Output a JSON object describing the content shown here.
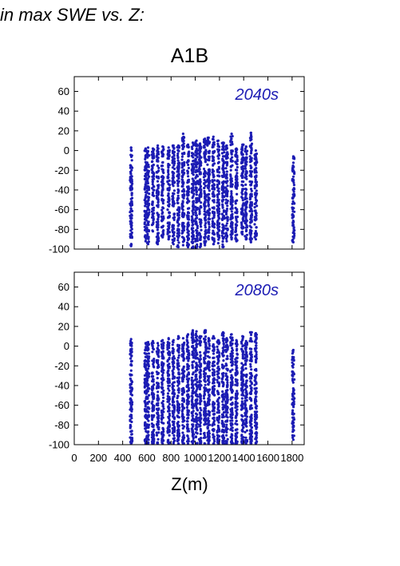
{
  "header": {
    "title": "in max SWE vs. Z:",
    "scenario": "A1B",
    "xaxis_title": "Z(m)"
  },
  "colors": {
    "points": "#1c1cb4",
    "axis": "#000000",
    "period_label": "#1c1cb4"
  },
  "chart_data": [
    {
      "type": "scatter",
      "title": "2040s",
      "xlabel": "Z(m)",
      "ylabel": "",
      "xlim": [
        0,
        1900
      ],
      "ylim": [
        -100,
        75
      ],
      "xticks": [
        0,
        200,
        400,
        600,
        800,
        1000,
        1200,
        1400,
        1600,
        1800
      ],
      "yticks": [
        60,
        40,
        20,
        0,
        -20,
        -40,
        -60,
        -80,
        -100
      ],
      "xtick_labels_shown": false,
      "grid": false,
      "columns": [
        {
          "x": 470,
          "ymin": -97,
          "ymax": 3
        },
        {
          "x": 590,
          "ymin": -92,
          "ymax": 2
        },
        {
          "x": 610,
          "ymin": -95,
          "ymax": 3
        },
        {
          "x": 650,
          "ymin": -82,
          "ymax": 2
        },
        {
          "x": 690,
          "ymin": -95,
          "ymax": 5
        },
        {
          "x": 730,
          "ymin": -88,
          "ymax": 4
        },
        {
          "x": 780,
          "ymin": -90,
          "ymax": 3
        },
        {
          "x": 820,
          "ymin": -95,
          "ymax": 5
        },
        {
          "x": 860,
          "ymin": -98,
          "ymax": 5
        },
        {
          "x": 900,
          "ymin": -96,
          "ymax": 17
        },
        {
          "x": 940,
          "ymin": -98,
          "ymax": 6
        },
        {
          "x": 980,
          "ymin": -99,
          "ymax": 8
        },
        {
          "x": 1010,
          "ymin": -99,
          "ymax": 10
        },
        {
          "x": 1040,
          "ymin": -98,
          "ymax": 7
        },
        {
          "x": 1080,
          "ymin": -96,
          "ymax": 12
        },
        {
          "x": 1110,
          "ymin": -90,
          "ymax": 13
        },
        {
          "x": 1150,
          "ymin": -95,
          "ymax": 14
        },
        {
          "x": 1190,
          "ymin": -94,
          "ymax": 10
        },
        {
          "x": 1230,
          "ymin": -98,
          "ymax": 8
        },
        {
          "x": 1260,
          "ymin": -92,
          "ymax": 5
        },
        {
          "x": 1300,
          "ymin": -90,
          "ymax": 17
        },
        {
          "x": 1340,
          "ymin": -92,
          "ymax": 2
        },
        {
          "x": 1390,
          "ymin": -85,
          "ymax": 6
        },
        {
          "x": 1420,
          "ymin": -90,
          "ymax": 4
        },
        {
          "x": 1460,
          "ymin": -93,
          "ymax": 18
        },
        {
          "x": 1500,
          "ymin": -90,
          "ymax": 0
        },
        {
          "x": 1810,
          "ymin": -93,
          "ymax": -6
        }
      ]
    },
    {
      "type": "scatter",
      "title": "2080s",
      "xlabel": "Z(m)",
      "ylabel": "",
      "xlim": [
        0,
        1900
      ],
      "ylim": [
        -100,
        75
      ],
      "xticks": [
        0,
        200,
        400,
        600,
        800,
        1000,
        1200,
        1400,
        1600,
        1800
      ],
      "yticks": [
        60,
        40,
        20,
        0,
        -20,
        -40,
        -60,
        -80,
        -100
      ],
      "xtick_labels_shown": true,
      "grid": false,
      "columns": [
        {
          "x": 470,
          "ymin": -99,
          "ymax": 7
        },
        {
          "x": 590,
          "ymin": -99,
          "ymax": 3
        },
        {
          "x": 610,
          "ymin": -99,
          "ymax": 4
        },
        {
          "x": 650,
          "ymin": -99,
          "ymax": 5
        },
        {
          "x": 690,
          "ymin": -99,
          "ymax": 3
        },
        {
          "x": 730,
          "ymin": -99,
          "ymax": 6
        },
        {
          "x": 780,
          "ymin": -99,
          "ymax": 8
        },
        {
          "x": 820,
          "ymin": -99,
          "ymax": 6
        },
        {
          "x": 860,
          "ymin": -99,
          "ymax": 10
        },
        {
          "x": 900,
          "ymin": -99,
          "ymax": 8
        },
        {
          "x": 940,
          "ymin": -99,
          "ymax": 12
        },
        {
          "x": 980,
          "ymin": -99,
          "ymax": 16
        },
        {
          "x": 1010,
          "ymin": -99,
          "ymax": 15
        },
        {
          "x": 1040,
          "ymin": -99,
          "ymax": 10
        },
        {
          "x": 1080,
          "ymin": -99,
          "ymax": 16
        },
        {
          "x": 1110,
          "ymin": -99,
          "ymax": 8
        },
        {
          "x": 1150,
          "ymin": -99,
          "ymax": 10
        },
        {
          "x": 1190,
          "ymin": -99,
          "ymax": 6
        },
        {
          "x": 1230,
          "ymin": -99,
          "ymax": 14
        },
        {
          "x": 1260,
          "ymin": -99,
          "ymax": 8
        },
        {
          "x": 1300,
          "ymin": -99,
          "ymax": 12
        },
        {
          "x": 1340,
          "ymin": -99,
          "ymax": 6
        },
        {
          "x": 1390,
          "ymin": -99,
          "ymax": 10
        },
        {
          "x": 1420,
          "ymin": -99,
          "ymax": 5
        },
        {
          "x": 1460,
          "ymin": -99,
          "ymax": 14
        },
        {
          "x": 1500,
          "ymin": -99,
          "ymax": 13
        },
        {
          "x": 1810,
          "ymin": -95,
          "ymax": -4
        }
      ]
    }
  ]
}
